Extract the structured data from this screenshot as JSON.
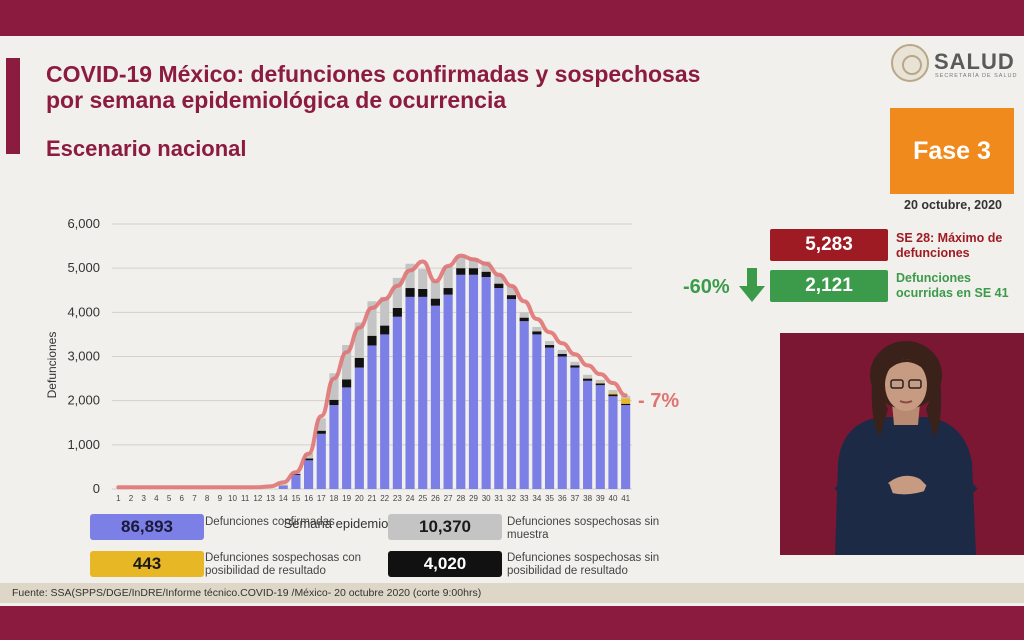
{
  "header": {
    "title_line1": "COVID-19 México: defunciones confirmadas y sospechosas",
    "title_line2": "por semana epidemiológica de ocurrencia",
    "subtitle": "Escenario nacional"
  },
  "logo": {
    "name": "SALUD",
    "sub": "SECRETARÍA DE SALUD"
  },
  "fase": {
    "label": "Fase 3",
    "date": "20 octubre, 2020"
  },
  "stats": {
    "max_value": "5,283",
    "max_label": "SE 28: Máximo de defunciones",
    "last_value": "2,121",
    "last_label": "Defunciones ocurridas en SE 41",
    "change": "-60%"
  },
  "colors": {
    "confirmed": "#7b7fe6",
    "sosp_sin_muestra": "#c4c4c4",
    "sosp_posibilidad": "#e7b726",
    "sosp_sin_posibilidad": "#111111",
    "curve": "#df7474",
    "brand": "#8c1c3f",
    "max_box": "#9e1b24",
    "last_box": "#3b9b4a",
    "fase_box": "#f08a1d"
  },
  "legend": [
    {
      "value": "86,893",
      "label": "Defunciones confirmadas",
      "color": "#7b7fe6",
      "text_color": "#1a1a3a"
    },
    {
      "value": "10,370",
      "label": "Defunciones sospechosas sin muestra",
      "color": "#c4c4c4",
      "text_color": "#1a1a1a"
    },
    {
      "value": "443",
      "label": "Defunciones sospechosas con posibilidad de resultado",
      "color": "#e7b726",
      "text_color": "#1a1a1a"
    },
    {
      "value": "4,020",
      "label": "Defunciones sospechosas sin posibilidad de resultado",
      "color": "#111111",
      "text_color": "#ffffff"
    }
  ],
  "chart_data": {
    "type": "bar",
    "stacked": true,
    "xlabel": "Semana epidemiológica de defunción",
    "ylabel": "Defunciones",
    "ylim": [
      0,
      6000
    ],
    "yticks": [
      "0",
      "1,000",
      "2,000",
      "3,000",
      "4,000",
      "5,000",
      "6,000"
    ],
    "categories": [
      "1",
      "2",
      "3",
      "4",
      "5",
      "6",
      "7",
      "8",
      "9",
      "10",
      "11",
      "12",
      "13",
      "14",
      "15",
      "16",
      "17",
      "18",
      "19",
      "20",
      "21",
      "22",
      "23",
      "24",
      "25",
      "26",
      "27",
      "28",
      "29",
      "30",
      "31",
      "32",
      "33",
      "34",
      "35",
      "36",
      "37",
      "38",
      "39",
      "40",
      "41"
    ],
    "series": [
      {
        "key": "confirmed",
        "values": [
          0,
          0,
          0,
          0,
          0,
          0,
          0,
          0,
          0,
          0,
          0,
          0,
          0,
          70,
          320,
          650,
          1250,
          1900,
          2300,
          2750,
          3250,
          3500,
          3900,
          4350,
          4350,
          4150,
          4400,
          4850,
          4850,
          4800,
          4550,
          4300,
          3800,
          3500,
          3200,
          3000,
          2750,
          2450,
          2350,
          2100,
          1900
        ]
      },
      {
        "key": "sosp_sin_posibilidad",
        "values": [
          0,
          0,
          0,
          0,
          0,
          0,
          0,
          0,
          0,
          0,
          0,
          0,
          0,
          5,
          20,
          40,
          70,
          120,
          180,
          220,
          220,
          200,
          200,
          200,
          180,
          160,
          150,
          150,
          150,
          120,
          100,
          90,
          80,
          70,
          60,
          60,
          50,
          50,
          40,
          40,
          30
        ]
      },
      {
        "key": "sosp_posibilidad",
        "values": [
          0,
          0,
          0,
          0,
          0,
          0,
          0,
          0,
          0,
          0,
          0,
          0,
          0,
          0,
          0,
          0,
          0,
          0,
          0,
          0,
          0,
          0,
          0,
          0,
          0,
          0,
          0,
          0,
          0,
          0,
          0,
          0,
          0,
          0,
          0,
          0,
          0,
          5,
          10,
          30,
          120
        ]
      },
      {
        "key": "sosp_sin_muestra",
        "values": [
          0,
          0,
          0,
          0,
          0,
          0,
          0,
          0,
          0,
          0,
          0,
          0,
          0,
          25,
          60,
          120,
          280,
          600,
          780,
          800,
          780,
          650,
          680,
          550,
          450,
          400,
          500,
          270,
          230,
          230,
          200,
          200,
          120,
          100,
          90,
          90,
          80,
          80,
          70,
          70,
          60
        ]
      }
    ],
    "curve": {
      "name": "7-day trend",
      "values": [
        40,
        40,
        40,
        40,
        40,
        40,
        40,
        40,
        40,
        40,
        40,
        40,
        60,
        150,
        380,
        800,
        1650,
        2500,
        3100,
        3650,
        4100,
        4300,
        4600,
        4950,
        5150,
        4700,
        5050,
        5283,
        5200,
        5100,
        4850,
        4600,
        4250,
        3850,
        3550,
        3300,
        3050,
        2800,
        2600,
        2400,
        2121
      ]
    },
    "annotation": "- 7%"
  },
  "footer": {
    "source": "Fuente: SSA(SPPS/DGE/InDRE/Informe técnico.COVID-19 /México- 20 octubre 2020 (corte 9:00hrs)"
  }
}
